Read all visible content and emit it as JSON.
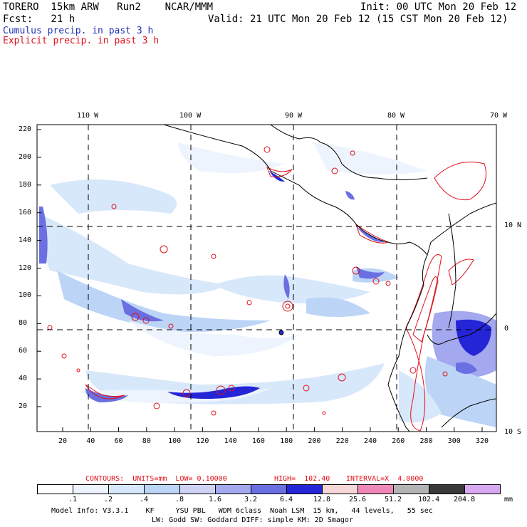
{
  "header": {
    "model": "TORERO  15km ARW   Run2    NCAR/MMM",
    "init": "Init: 00 UTC Mon 20 Feb 12",
    "fcst": "Fcst:   21 h",
    "valid": "Valid: 21 UTC Mon 20 Feb 12 (15 CST Mon 20 Feb 12)",
    "line_cumulus": "Cumulus precip. in past 3 h",
    "line_explicit": "Explicit precip. in past 3 h"
  },
  "colors": {
    "cumulus": "#1f2fb4",
    "explicit": "#e0101a"
  },
  "map": {
    "top_lon_labels": [
      "110 W",
      "100 W",
      "90 W",
      "80 W",
      "70 W"
    ],
    "right_lat_labels": [
      "10 N",
      "0",
      "10 S"
    ],
    "y_ticks": [
      "220",
      "200",
      "180",
      "160",
      "140",
      "120",
      "100",
      "80",
      "60",
      "40",
      "20"
    ],
    "x_ticks": [
      "20",
      "40",
      "60",
      "80",
      "100",
      "120",
      "140",
      "160",
      "180",
      "200",
      "220",
      "240",
      "260",
      "280",
      "300",
      "320"
    ]
  },
  "contours": {
    "label": "CONTOURS:  UNITS=mm  LOW= 0.10000",
    "high": "HIGH=  102.40",
    "interval": "INTERVAL=X  4.0000"
  },
  "legend": {
    "labels": [
      ".1",
      ".2",
      ".4",
      ".8",
      "1.6",
      "3.2",
      "6.4",
      "12.8",
      "25.6",
      "51.2",
      "102.4",
      "204.8"
    ],
    "unit": "mm",
    "colors": [
      "#ffffff",
      "#eef4fd",
      "#d8e8fb",
      "#bcd5f7",
      "#d0d2f5",
      "#a4a8ee",
      "#6a6fe2",
      "#2525d8",
      "#f6d6d6",
      "#ef88b8",
      "#b4b4b4",
      "#3a3a3a",
      "#d8a8f0"
    ]
  },
  "footer": {
    "line1": "Model Info: V3.3.1    KF     YSU PBL   WDM 6class  Noah LSM  15 km,   44 levels,   55 sec",
    "line2": "LW: Godd SW: Goddard DIFF: simple KM: 2D Smagor"
  }
}
